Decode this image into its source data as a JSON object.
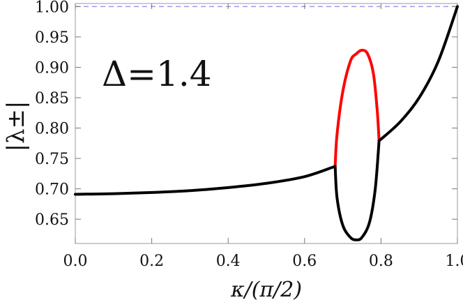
{
  "chart_data": {
    "type": "line",
    "xlabel": "κ/(π/2)",
    "ylabel": "|λ±|",
    "annotation": "Δ=1.4",
    "xlim": [
      0.0,
      1.0
    ],
    "ylim": [
      0.61,
      1.005
    ],
    "x_ticks": [
      "0.0",
      "0.2",
      "0.4",
      "0.6",
      "0.8",
      "1.0"
    ],
    "y_ticks": [
      "0.65",
      "0.70",
      "0.75",
      "0.80",
      "0.85",
      "0.90",
      "0.95",
      "1.00"
    ],
    "reference_line": {
      "y": 1.0,
      "style": "dashed",
      "color": "#9999ee"
    },
    "series": [
      {
        "color": "#000000",
        "points": [
          [
            0.0,
            0.691
          ],
          [
            0.1,
            0.692
          ],
          [
            0.2,
            0.694
          ],
          [
            0.3,
            0.697
          ],
          [
            0.4,
            0.702
          ],
          [
            0.5,
            0.709
          ],
          [
            0.6,
            0.72
          ],
          [
            0.68,
            0.737
          ]
        ]
      },
      {
        "color": "#ff0000",
        "points": [
          [
            0.68,
            0.737
          ],
          [
            0.685,
            0.79
          ],
          [
            0.7,
            0.86
          ],
          [
            0.72,
            0.91
          ],
          [
            0.735,
            0.922
          ],
          [
            0.75,
            0.928
          ],
          [
            0.765,
            0.922
          ],
          [
            0.78,
            0.89
          ],
          [
            0.79,
            0.83
          ],
          [
            0.795,
            0.779
          ]
        ]
      },
      {
        "color": "#000000",
        "points": [
          [
            0.68,
            0.737
          ],
          [
            0.685,
            0.685
          ],
          [
            0.7,
            0.64
          ],
          [
            0.72,
            0.62
          ],
          [
            0.735,
            0.616
          ],
          [
            0.75,
            0.62
          ],
          [
            0.77,
            0.645
          ],
          [
            0.785,
            0.7
          ],
          [
            0.795,
            0.779
          ]
        ]
      },
      {
        "color": "#000000",
        "points": [
          [
            0.795,
            0.779
          ],
          [
            0.85,
            0.81
          ],
          [
            0.9,
            0.85
          ],
          [
            0.95,
            0.91
          ],
          [
            1.0,
            1.0
          ]
        ]
      }
    ]
  }
}
